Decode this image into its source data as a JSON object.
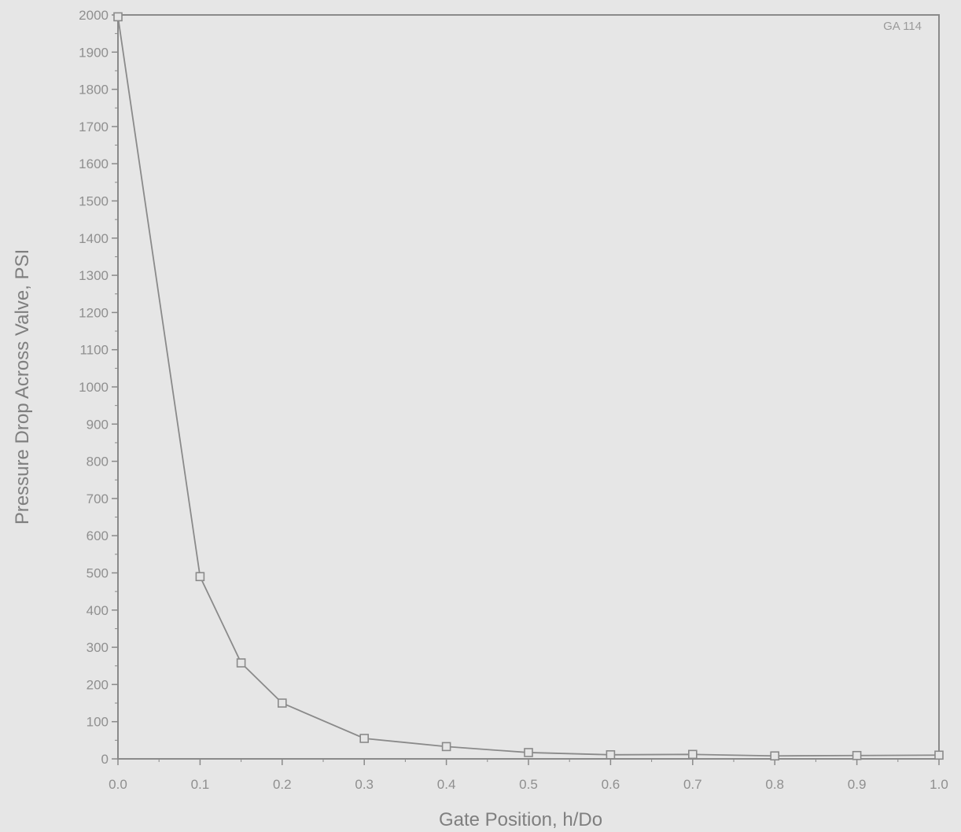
{
  "chart_data": {
    "type": "line",
    "title": "",
    "xlabel": "Gate Position, h/Do",
    "ylabel": "Pressure Drop Across Valve, PSI",
    "annotation": "GA 114",
    "xlim": [
      0.0,
      1.0
    ],
    "ylim": [
      0,
      2000
    ],
    "xticks": [
      "0.0",
      "0.1",
      "0.2",
      "0.3",
      "0.4",
      "0.5",
      "0.6",
      "0.7",
      "0.8",
      "0.9",
      "1.0"
    ],
    "yticks": [
      "0",
      "100",
      "200",
      "300",
      "400",
      "500",
      "600",
      "700",
      "800",
      "900",
      "1000",
      "1100",
      "1200",
      "1300",
      "1400",
      "1500",
      "1600",
      "1700",
      "1800",
      "1900",
      "2000"
    ],
    "grid": false,
    "legend": "none",
    "marker": "open-square",
    "series": [
      {
        "x": [
          0.0,
          0.1,
          0.15,
          0.2,
          0.3,
          0.4,
          0.5,
          0.6,
          0.7,
          0.8,
          0.9,
          1.0
        ],
        "y": [
          1995,
          490,
          258,
          150,
          55,
          33,
          17,
          11,
          12,
          8,
          9,
          10
        ]
      }
    ],
    "colors": {
      "line": "#8a8a8a",
      "axis": "#8a8a8a",
      "text": "#8f8f8f",
      "background": "#e6e6e6"
    }
  }
}
